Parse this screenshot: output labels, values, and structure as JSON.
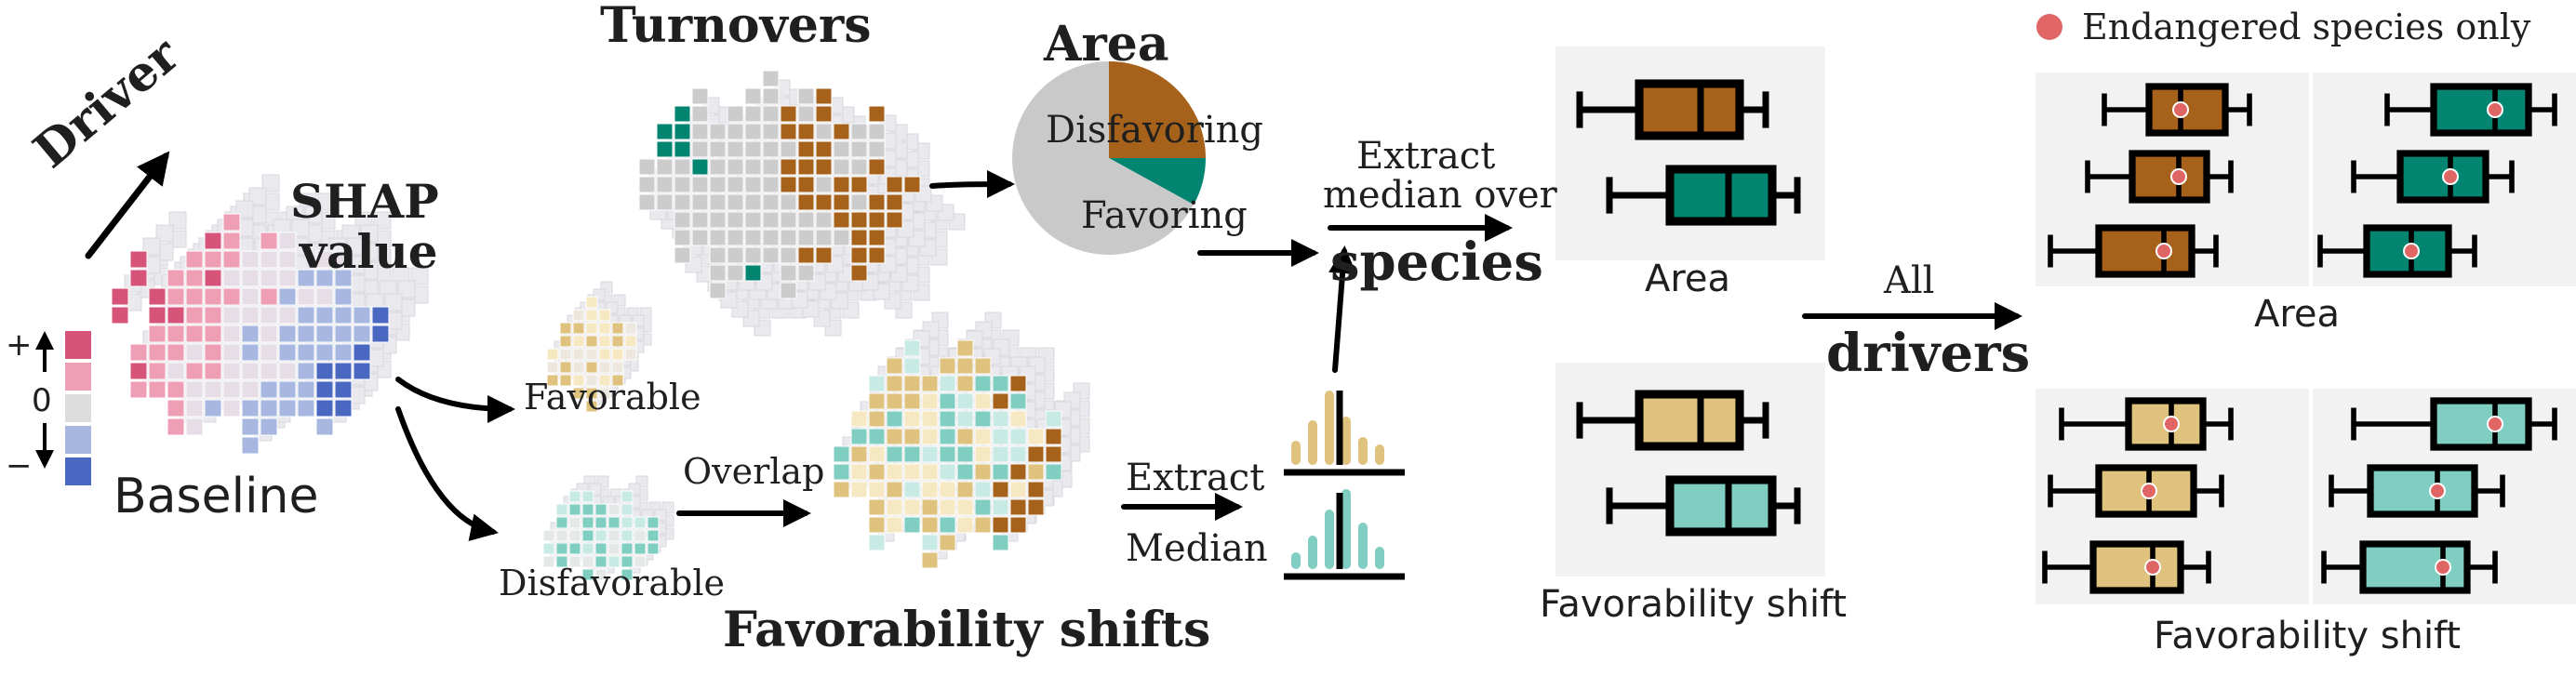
{
  "labels": {
    "driver": "Driver",
    "shap_value_line1": "SHAP",
    "shap_value_line2": "value",
    "scale_plus": "+",
    "scale_zero": "0",
    "scale_minus": "−",
    "baseline": "Baseline",
    "turnovers": "Turnovers",
    "area_pie_title": "Area",
    "pie_disfavoring": "Disfavoring",
    "pie_favoring": "Favoring",
    "favorable": "Favorable",
    "disfavorable": "Disfavorable",
    "overlap": "Overlap",
    "favorability_shifts": "Favorability shifts",
    "extract": "Extract",
    "median": "Median",
    "extract_median_over_line1": "Extract",
    "extract_median_over_line2": "median over",
    "species": "species",
    "area_panel_label": "Area",
    "favorability_shift_panel_label": "Favorability shift",
    "all": "All",
    "drivers": "drivers",
    "legend_endangered": "Endangered species only",
    "area_right_label": "Area",
    "favorability_shift_right_label": "Favorability shift"
  },
  "colors": {
    "brown_dark": "#a6611a",
    "brown_light": "#dfc27d",
    "brown_pale": "#f6e8c3",
    "teal_dark": "#018571",
    "teal_light": "#80cdc1",
    "teal_pale": "#c7eae5",
    "grey_cell": "#cccccc",
    "red_strong": "#d6547a",
    "red_light": "#ee9fb5",
    "blue_light": "#a7b7e0",
    "blue_strong": "#4a67c1",
    "endangered_dot": "#e06666",
    "panel_bg": "#f2f2f2"
  },
  "pie": {
    "disfavoring_share": 0.25,
    "favoring_share": 0.08,
    "rest_share": 0.67
  }
}
